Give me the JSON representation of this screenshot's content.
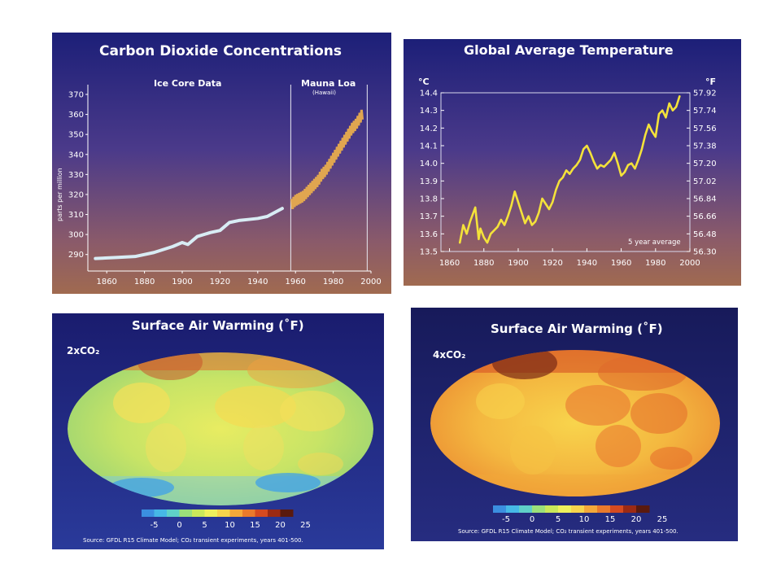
{
  "colors": {
    "co2_ice_line": "#d8ecf4",
    "co2_mauna_loa": "#e0a650",
    "temp_line": "#f4e23a",
    "colorbar": [
      "#3b8fe0",
      "#46b8e6",
      "#5fd0c8",
      "#9be07a",
      "#c9e85a",
      "#eef05c",
      "#f7d44c",
      "#f4a83a",
      "#ea7a2c",
      "#d64a20",
      "#9c2a14",
      "#5a1a0e"
    ]
  },
  "chart_data": [
    {
      "type": "line",
      "title": "Carbon Dioxide Concentrations",
      "ylabel": "parts per million",
      "xlabel": "",
      "annotations": [
        "Ice Core Data",
        "Mauna Loa",
        "(Hawaii)"
      ],
      "xlim": [
        1850,
        2000
      ],
      "ylim": [
        285,
        370
      ],
      "x_ticks": [
        "1860",
        "1880",
        "1900",
        "1920",
        "1940",
        "1960",
        "1980",
        "2000"
      ],
      "y_ticks": [
        "290",
        "300",
        "310",
        "320",
        "330",
        "340",
        "350",
        "360",
        "370"
      ],
      "series": [
        {
          "name": "Ice Core Data",
          "x": [
            1854,
            1865,
            1875,
            1885,
            1895,
            1900,
            1903,
            1908,
            1915,
            1920,
            1925,
            1930,
            1935,
            1940,
            1945,
            1953
          ],
          "y": [
            288,
            288.5,
            289,
            291,
            294,
            296,
            295,
            299,
            301,
            302,
            306,
            307,
            307.5,
            308,
            309,
            313
          ]
        },
        {
          "name": "Mauna Loa",
          "x": [
            1958,
            1960,
            1962,
            1964,
            1966,
            1968,
            1970,
            1972,
            1974,
            1976,
            1978,
            1980,
            1982,
            1984,
            1986,
            1988,
            1990,
            1992,
            1994,
            1996
          ],
          "y": [
            315,
            317,
            318,
            319,
            321,
            323,
            325,
            327,
            330,
            332,
            335,
            338,
            341,
            344,
            347,
            350,
            353,
            355,
            358,
            361
          ]
        }
      ]
    },
    {
      "type": "line",
      "title": "Global Average Temperature",
      "ylabel": "°C",
      "ylabel_right": "°F",
      "xlabel": "",
      "annotations": [
        "5 year average"
      ],
      "xlim": [
        1855,
        2000
      ],
      "ylim": [
        13.5,
        14.4
      ],
      "x_ticks": [
        "1860",
        "1880",
        "1900",
        "1920",
        "1940",
        "1960",
        "1980",
        "2000"
      ],
      "y_ticks": [
        "13.5",
        "13.6",
        "13.7",
        "13.8",
        "13.9",
        "14.0",
        "14.1",
        "14.2",
        "14.3",
        "14.4"
      ],
      "y_ticks_right": [
        "56.30",
        "56.48",
        "56.66",
        "56.84",
        "57.02",
        "57.20",
        "57.38",
        "57.56",
        "57.74",
        "57.92"
      ],
      "series": [
        {
          "name": "5 year average",
          "x": [
            1866,
            1868,
            1870,
            1872,
            1875,
            1877,
            1878,
            1880,
            1882,
            1884,
            1886,
            1888,
            1890,
            1892,
            1894,
            1896,
            1898,
            1900,
            1902,
            1904,
            1906,
            1908,
            1910,
            1912,
            1914,
            1916,
            1918,
            1920,
            1922,
            1924,
            1926,
            1928,
            1930,
            1932,
            1934,
            1936,
            1938,
            1940,
            1942,
            1944,
            1946,
            1948,
            1950,
            1952,
            1954,
            1956,
            1958,
            1960,
            1962,
            1964,
            1966,
            1968,
            1970,
            1972,
            1974,
            1976,
            1978,
            1980,
            1982,
            1984,
            1986,
            1988,
            1990,
            1992,
            1994
          ],
          "y": [
            13.55,
            13.65,
            13.6,
            13.67,
            13.75,
            13.57,
            13.63,
            13.58,
            13.55,
            13.6,
            13.62,
            13.64,
            13.68,
            13.65,
            13.7,
            13.76,
            13.84,
            13.78,
            13.72,
            13.66,
            13.7,
            13.65,
            13.67,
            13.72,
            13.8,
            13.77,
            13.74,
            13.78,
            13.85,
            13.9,
            13.92,
            13.96,
            13.94,
            13.97,
            13.99,
            14.02,
            14.08,
            14.1,
            14.06,
            14.01,
            13.97,
            13.99,
            13.98,
            14.0,
            14.02,
            14.06,
            14.0,
            13.93,
            13.95,
            13.99,
            14.0,
            13.97,
            14.02,
            14.08,
            14.16,
            14.22,
            14.18,
            14.15,
            14.28,
            14.3,
            14.26,
            14.34,
            14.3,
            14.32,
            14.38
          ]
        }
      ]
    }
  ],
  "maps": [
    {
      "title": "Surface Air Warming (˚F)",
      "scenario": "2xCO₂",
      "colorbar_labels": [
        "-5",
        "0",
        "5",
        "10",
        "15",
        "20",
        "25"
      ],
      "source": "Source: GFDL R15 Climate Model; CO₂ transient experiments, years 401-500."
    },
    {
      "title": "Surface Air Warming (˚F)",
      "scenario": "4xCO₂",
      "colorbar_labels": [
        "-5",
        "0",
        "5",
        "10",
        "15",
        "20",
        "25"
      ],
      "source": "Source: GFDL R15 Climate Model; CO₂ transient experiments, years 401-500."
    }
  ]
}
